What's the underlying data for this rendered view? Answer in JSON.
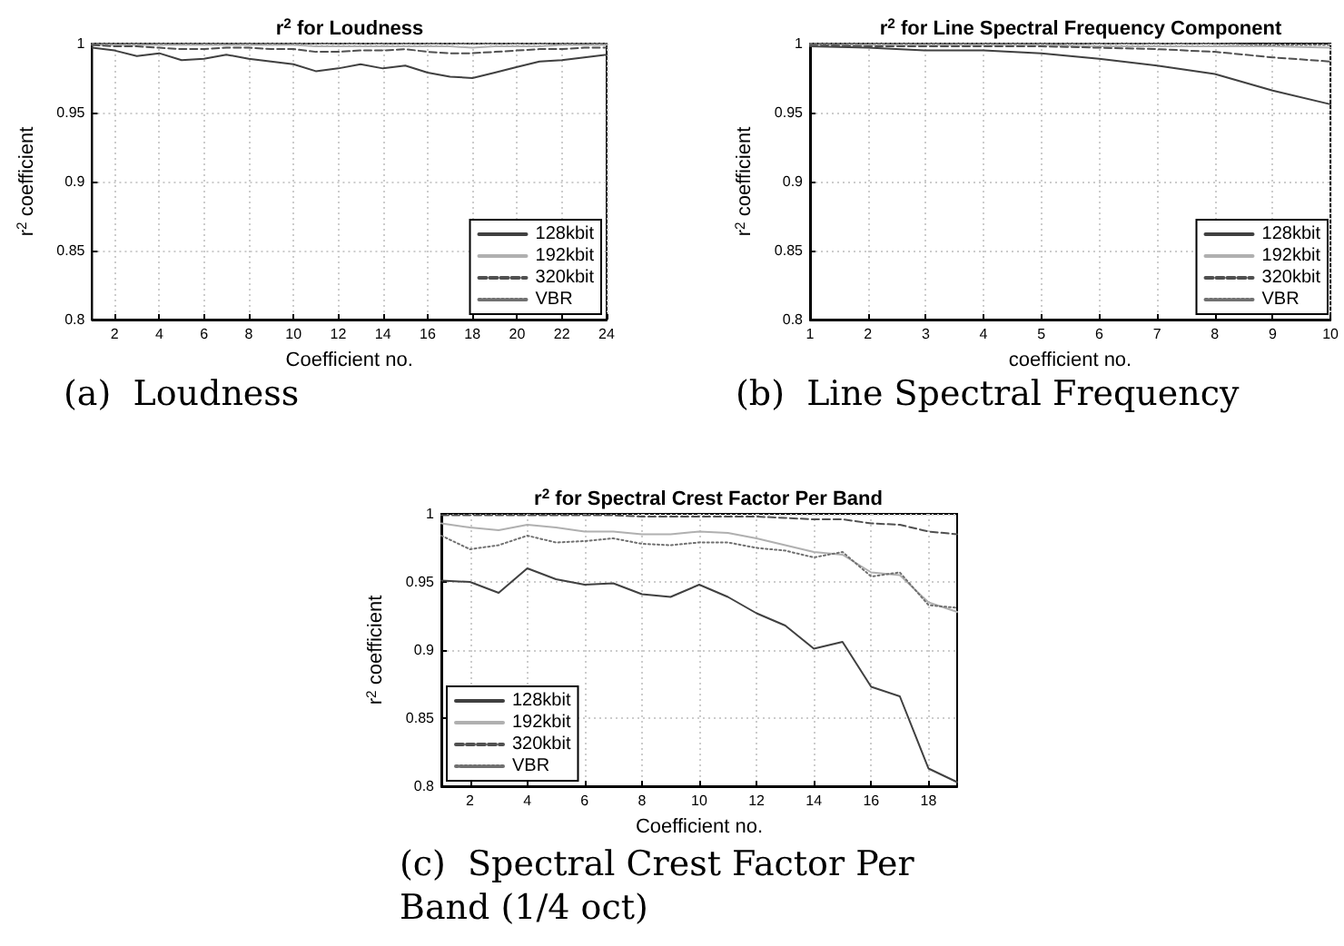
{
  "chart_data": [
    {
      "type": "line",
      "title": "r$^{2}$ for Loudness",
      "xlabel": "Coefficient no.",
      "ylabel": "r$^{2}$ coefficient",
      "annotations": [
        "(a)  Loudness"
      ],
      "x": [
        1,
        2,
        3,
        4,
        5,
        6,
        7,
        8,
        9,
        10,
        11,
        12,
        13,
        14,
        15,
        16,
        17,
        18,
        19,
        20,
        21,
        22,
        23,
        24
      ],
      "xlim": [
        1,
        24
      ],
      "xticks": [
        2,
        4,
        6,
        8,
        10,
        12,
        14,
        16,
        18,
        20,
        22,
        24
      ],
      "ylim": [
        0.8,
        1
      ],
      "yticks": [
        0.8,
        0.85,
        0.9,
        0.95,
        1
      ],
      "grid": true,
      "legend": "bottom right",
      "marker": "none",
      "series": [
        {
          "name": "128kbit",
          "color": "#404040",
          "line_style": "solid",
          "values": [
            0.997,
            0.995,
            0.991,
            0.993,
            0.988,
            0.989,
            0.992,
            0.989,
            0.987,
            0.985,
            0.98,
            0.982,
            0.985,
            0.982,
            0.984,
            0.979,
            0.976,
            0.975,
            0.979,
            0.983,
            0.987,
            0.988,
            0.99,
            0.992
          ]
        },
        {
          "name": "192kbit",
          "color": "#b0b0b0",
          "line_style": "solid",
          "values": [
            0.999,
            0.999,
            0.999,
            0.999,
            0.999,
            0.999,
            0.999,
            0.999,
            0.999,
            0.999,
            0.998,
            0.998,
            0.998,
            0.998,
            0.998,
            0.998,
            0.998,
            0.997,
            0.998,
            0.998,
            0.998,
            0.999,
            0.999,
            0.999
          ]
        },
        {
          "name": "320kbit",
          "color": "#505050",
          "line_style": "dashed",
          "values": [
            0.999,
            0.998,
            0.998,
            0.997,
            0.996,
            0.996,
            0.997,
            0.997,
            0.996,
            0.996,
            0.994,
            0.994,
            0.995,
            0.995,
            0.996,
            0.994,
            0.993,
            0.993,
            0.994,
            0.995,
            0.996,
            0.996,
            0.997,
            0.997
          ]
        },
        {
          "name": "VBR",
          "color": "#707070",
          "line_style": "dotted",
          "values": [
            1,
            1,
            1,
            1,
            1,
            1,
            1,
            1,
            1,
            1,
            1,
            1,
            1,
            1,
            1,
            1,
            1,
            1,
            1,
            1,
            1,
            1,
            1,
            1
          ]
        }
      ]
    },
    {
      "type": "line",
      "title": "r$^{2}$ for Line Spectral Frequency Component",
      "xlabel": "coefficient no.",
      "ylabel": "r$^{2}$ coefficient",
      "annotations": [
        "(b)  Line Spectral Frequency"
      ],
      "x": [
        1,
        2,
        3,
        4,
        5,
        6,
        7,
        8,
        9,
        10
      ],
      "xlim": [
        1,
        10
      ],
      "xticks": [
        1,
        2,
        3,
        4,
        5,
        6,
        7,
        8,
        9,
        10
      ],
      "ylim": [
        0.8,
        1
      ],
      "yticks": [
        0.8,
        0.85,
        0.9,
        0.95,
        1
      ],
      "grid": true,
      "legend": "bottom right",
      "marker": "none",
      "series": [
        {
          "name": "128kbit",
          "color": "#404040",
          "line_style": "solid",
          "values": [
            0.998,
            0.997,
            0.995,
            0.995,
            0.993,
            0.989,
            0.984,
            0.978,
            0.966,
            0.956
          ]
        },
        {
          "name": "192kbit",
          "color": "#b0b0b0",
          "line_style": "solid",
          "values": [
            0.999,
            0.999,
            0.999,
            0.999,
            0.999,
            0.998,
            0.998,
            0.998,
            0.998,
            0.997
          ]
        },
        {
          "name": "320kbit",
          "color": "#505050",
          "line_style": "dashed",
          "values": [
            0.999,
            0.998,
            0.998,
            0.998,
            0.998,
            0.997,
            0.996,
            0.994,
            0.99,
            0.987
          ]
        },
        {
          "name": "VBR",
          "color": "#707070",
          "line_style": "dotted",
          "values": [
            1,
            1,
            1,
            1,
            1,
            1,
            1,
            1,
            0.999,
            0.999
          ]
        }
      ]
    },
    {
      "type": "line",
      "title": "r$^{2}$ for Spectral Crest Factor Per Band",
      "xlabel": "Coefficient no.",
      "ylabel": "r$^{2}$ coefficient",
      "annotations": [
        "(c)  Spectral Crest Factor Per Band (1/4 oct)"
      ],
      "x": [
        1,
        2,
        3,
        4,
        5,
        6,
        7,
        8,
        9,
        10,
        11,
        12,
        13,
        14,
        15,
        16,
        17,
        18,
        19
      ],
      "xlim": [
        1,
        19
      ],
      "xticks": [
        2,
        4,
        6,
        8,
        10,
        12,
        14,
        16,
        18
      ],
      "ylim": [
        0.8,
        1
      ],
      "yticks": [
        0.8,
        0.85,
        0.9,
        0.95,
        1
      ],
      "grid": true,
      "legend": "bottom left",
      "marker": "none",
      "series": [
        {
          "name": "128kbit",
          "color": "#404040",
          "line_style": "solid",
          "values": [
            0.951,
            0.95,
            0.942,
            0.96,
            0.952,
            0.948,
            0.949,
            0.941,
            0.939,
            0.948,
            0.939,
            0.927,
            0.918,
            0.901,
            0.906,
            0.873,
            0.866,
            0.813,
            0.803
          ]
        },
        {
          "name": "192kbit",
          "color": "#b0b0b0",
          "line_style": "solid",
          "values": [
            0.993,
            0.99,
            0.988,
            0.992,
            0.99,
            0.987,
            0.987,
            0.985,
            0.985,
            0.987,
            0.986,
            0.982,
            0.977,
            0.972,
            0.97,
            0.957,
            0.955,
            0.935,
            0.928
          ]
        },
        {
          "name": "320kbit",
          "color": "#505050",
          "line_style": "dashed",
          "values": [
            0.999,
            0.999,
            0.999,
            0.999,
            0.999,
            0.999,
            0.999,
            0.998,
            0.998,
            0.998,
            0.998,
            0.998,
            0.997,
            0.996,
            0.996,
            0.993,
            0.992,
            0.987,
            0.985
          ]
        },
        {
          "name": "VBR",
          "color": "#707070",
          "line_style": "dotted",
          "values": [
            0.984,
            0.974,
            0.977,
            0.984,
            0.979,
            0.98,
            0.982,
            0.978,
            0.977,
            0.979,
            0.979,
            0.975,
            0.973,
            0.968,
            0.972,
            0.954,
            0.957,
            0.933,
            0.931
          ]
        }
      ]
    }
  ]
}
